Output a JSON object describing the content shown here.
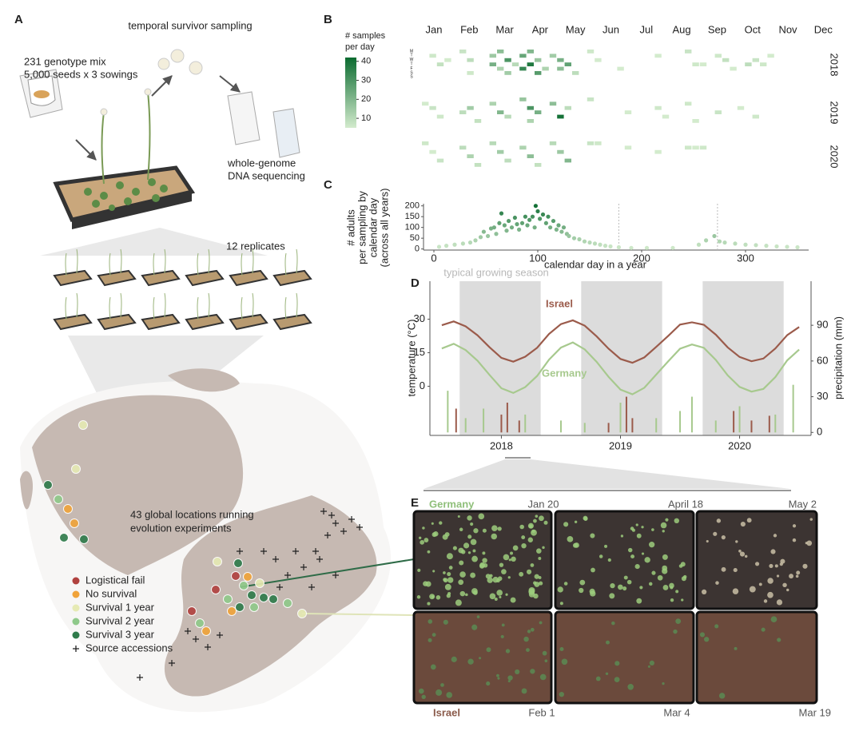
{
  "panels": {
    "A": {
      "letter": "A",
      "sampling_label": "temporal survivor sampling",
      "mix_label": [
        "231 genotype mix",
        "5,000 seeds x 3 sowings"
      ],
      "sequencing_label": [
        "whole-genome",
        "DNA sequencing"
      ],
      "replicates_label": "12 replicates",
      "map_label": [
        "43 global locations running",
        "evolution experiments"
      ],
      "legend": [
        {
          "name": "Logistical fail",
          "color": "#b0413e"
        },
        {
          "name": "No survival",
          "color": "#f0a33a"
        },
        {
          "name": "Survival 1 year",
          "color": "#e6eab4"
        },
        {
          "name": "Survival 2 year",
          "color": "#8fc98a"
        },
        {
          "name": "Survival 3 year",
          "color": "#2e7a4a"
        },
        {
          "name": "Source accessions",
          "color": "#222222"
        }
      ]
    },
    "B": {
      "letter": "B"
    },
    "C": {
      "letter": "C"
    },
    "D": {
      "letter": "D"
    },
    "E": {
      "letter": "E",
      "rows": [
        {
          "site": "Germany",
          "color": "#8fbf7a",
          "dates": [
            "Jan 20",
            "April 18",
            "May 2"
          ]
        },
        {
          "site": "Israel",
          "color": "#8a5a4a",
          "dates": [
            "Feb 1",
            "Mar 4",
            "Mar 19"
          ]
        }
      ]
    }
  },
  "chart_data": [
    {
      "type": "heatmap",
      "legend_title": [
        "# samples",
        "per day"
      ],
      "months": [
        "Jan",
        "Feb",
        "Mar",
        "Apr",
        "May",
        "Jun",
        "Jul",
        "Aug",
        "Sep",
        "Oct",
        "Nov",
        "Dec"
      ],
      "weekdays": [
        "M",
        "T",
        "W",
        "T",
        "F",
        "S",
        "S"
      ],
      "clim": [
        5,
        42
      ],
      "cticks": [
        10,
        20,
        30,
        40
      ],
      "colors": [
        "#d3ebcd",
        "#0b6b30"
      ],
      "series": [
        {
          "name": "2018",
          "weeks": [
            1,
            2,
            3,
            5,
            6,
            6,
            9,
            9,
            10,
            10,
            11,
            11,
            12,
            13,
            13,
            14,
            14,
            15,
            15,
            16,
            17,
            18,
            18,
            19,
            20,
            22,
            23,
            26,
            31,
            35,
            36,
            37,
            39,
            40,
            41,
            43,
            44,
            45,
            46
          ],
          "days": [
            1,
            3,
            2,
            0,
            2,
            5,
            1,
            3,
            0,
            4,
            2,
            5,
            3,
            1,
            4,
            0,
            3,
            2,
            5,
            4,
            1,
            2,
            4,
            3,
            5,
            0,
            2,
            4,
            1,
            0,
            3,
            3,
            1,
            2,
            4,
            3,
            2,
            3,
            1
          ],
          "values": [
            6,
            8,
            5,
            7,
            9,
            6,
            15,
            22,
            18,
            12,
            30,
            14,
            10,
            25,
            34,
            20,
            38,
            16,
            28,
            12,
            14,
            22,
            18,
            26,
            9,
            6,
            5,
            4,
            5,
            7,
            6,
            5,
            6,
            8,
            5,
            9,
            7,
            6,
            5
          ]
        },
        {
          "name": "2019",
          "weeks": [
            0,
            1,
            2,
            5,
            6,
            7,
            9,
            10,
            11,
            13,
            14,
            14,
            15,
            17,
            18,
            19,
            22,
            27,
            31,
            32,
            35,
            36,
            39,
            42,
            44
          ],
          "days": [
            1,
            2,
            4,
            3,
            2,
            5,
            1,
            3,
            4,
            0,
            2,
            5,
            3,
            1,
            4,
            2,
            0,
            3,
            2,
            4,
            1,
            5,
            3,
            2,
            4
          ],
          "values": [
            5,
            7,
            6,
            9,
            14,
            8,
            12,
            20,
            10,
            16,
            30,
            12,
            22,
            18,
            40,
            9,
            7,
            5,
            6,
            5,
            6,
            5,
            7,
            5,
            6
          ]
        },
        {
          "name": "2020",
          "weeks": [
            0,
            1,
            2,
            5,
            6,
            7,
            9,
            10,
            11,
            13,
            14,
            15,
            17,
            18,
            19,
            22,
            23,
            27,
            31,
            35,
            36,
            37
          ],
          "days": [
            0,
            2,
            4,
            1,
            3,
            5,
            0,
            2,
            4,
            1,
            3,
            5,
            0,
            2,
            4,
            0,
            0,
            1,
            2,
            1,
            1,
            1
          ],
          "values": [
            6,
            5,
            7,
            9,
            12,
            8,
            10,
            14,
            9,
            12,
            18,
            8,
            10,
            15,
            20,
            7,
            6,
            5,
            5,
            6,
            5,
            6
          ]
        }
      ]
    },
    {
      "type": "scatter",
      "ylabel": [
        "# adults",
        "per sampling by",
        "calendar day",
        "(across all years)"
      ],
      "xlabel": "calendar day in a year",
      "colors": [
        "#d3ebcd",
        "#0b6b30"
      ],
      "xlim": [
        -10,
        370
      ],
      "xticks": [
        0,
        100,
        200,
        300
      ],
      "ylim": [
        -5,
        210
      ],
      "yticks": [
        0,
        50,
        100,
        150,
        200
      ],
      "x": [
        5,
        12,
        20,
        28,
        35,
        40,
        45,
        48,
        52,
        55,
        58,
        60,
        63,
        65,
        68,
        70,
        72,
        75,
        78,
        80,
        82,
        85,
        88,
        90,
        92,
        95,
        97,
        98,
        100,
        102,
        105,
        108,
        110,
        112,
        115,
        118,
        120,
        123,
        125,
        128,
        130,
        135,
        140,
        145,
        150,
        155,
        160,
        165,
        170,
        178,
        190,
        205,
        230,
        255,
        262,
        270,
        275,
        280,
        290,
        300,
        310,
        320,
        330,
        340,
        350
      ],
      "values": [
        10,
        15,
        20,
        25,
        30,
        40,
        55,
        80,
        60,
        95,
        100,
        70,
        120,
        165,
        110,
        85,
        130,
        100,
        145,
        115,
        90,
        120,
        150,
        110,
        135,
        150,
        100,
        200,
        175,
        140,
        160,
        120,
        150,
        100,
        130,
        90,
        110,
        80,
        100,
        70,
        60,
        50,
        45,
        35,
        30,
        25,
        20,
        15,
        12,
        8,
        5,
        5,
        5,
        20,
        40,
        60,
        35,
        30,
        25,
        20,
        18,
        15,
        12,
        10,
        8
      ]
    },
    {
      "type": "line",
      "ylabel": "temperature (°C)",
      "y2label": "precipitation (mm)",
      "annotation": "typical growing season",
      "shaded_spans": [
        [
          2017.65,
          2018.33
        ],
        [
          2018.67,
          2019.35
        ],
        [
          2019.69,
          2020.37
        ]
      ],
      "xlim": [
        2017.4,
        2020.6
      ],
      "xticks": [
        2018,
        2019,
        2020
      ],
      "ylim": [
        -22,
        47
      ],
      "yticks": [
        0,
        15,
        30
      ],
      "y2lim": [
        -2.5,
        127
      ],
      "y2ticks": [
        0,
        30,
        60,
        90
      ],
      "x": [
        2017.5,
        2017.6,
        2017.7,
        2017.8,
        2017.9,
        2018.0,
        2018.1,
        2018.2,
        2018.3,
        2018.4,
        2018.5,
        2018.6,
        2018.7,
        2018.8,
        2018.9,
        2019.0,
        2019.1,
        2019.2,
        2019.3,
        2019.4,
        2019.5,
        2019.6,
        2019.7,
        2019.8,
        2019.9,
        2020.0,
        2020.1,
        2020.2,
        2020.3,
        2020.4,
        2020.5
      ],
      "series": [
        {
          "name": "Israel",
          "color": "#9b5b4b",
          "values": [
            27.3,
            29,
            26.8,
            22.8,
            17.5,
            12.7,
            11,
            13.2,
            17.2,
            23.4,
            27.8,
            29.5,
            27.1,
            22.3,
            16.8,
            12.2,
            10.5,
            12.9,
            17.6,
            22.5,
            27.6,
            28.6,
            27.5,
            23.1,
            17.4,
            13.1,
            11.2,
            12.4,
            16.9,
            22.9,
            26.5
          ]
        },
        {
          "name": "Germany",
          "color": "#a7c98e",
          "values": [
            16.9,
            19,
            16.2,
            11.4,
            5.1,
            -0.9,
            -3,
            -0.4,
            4.6,
            11.9,
            17.3,
            19.6,
            16.5,
            10.9,
            4.2,
            -1.5,
            -3.6,
            -0.7,
            5.2,
            11.1,
            16.8,
            18.7,
            17.2,
            11.8,
            4.9,
            -0.3,
            -2.4,
            -1.2,
            4.1,
            11.6,
            16.4
          ]
        },
        {
          "axis": "y2",
          "color": "#9b5b4b",
          "x": [
            2017.62,
            2018.0,
            2018.05,
            2018.15,
            2018.9,
            2019.05,
            2019.1,
            2019.95,
            2020.1,
            2020.25
          ],
          "values": [
            20,
            15,
            25,
            10,
            8,
            30,
            12,
            18,
            10,
            14
          ]
        },
        {
          "axis": "y2",
          "color": "#a7c98e",
          "x": [
            2017.55,
            2017.7,
            2017.85,
            2018.2,
            2018.5,
            2018.7,
            2019.0,
            2019.3,
            2019.5,
            2019.6,
            2019.8,
            2020.0,
            2020.3,
            2020.45
          ],
          "values": [
            35,
            12,
            20,
            15,
            10,
            8,
            25,
            12,
            18,
            30,
            10,
            22,
            15,
            40
          ]
        }
      ]
    }
  ]
}
